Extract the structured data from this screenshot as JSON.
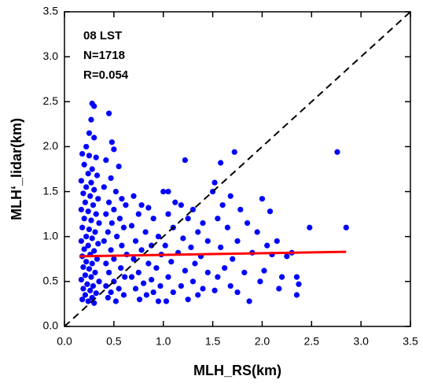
{
  "chart_data": {
    "type": "scatter",
    "xlabel": "MLH_RS(km)",
    "ylabel": "MLH‘_lidar(km)",
    "annotations": [
      "08 LST",
      "N=1718",
      "R=0.054"
    ],
    "xlim": [
      0,
      3.5
    ],
    "ylim": [
      0,
      3.5
    ],
    "xticks": [
      {
        "value": 0,
        "label": "0.0"
      },
      0.5,
      {
        "value": 1,
        "label": "1.0"
      },
      1.5,
      {
        "value": 2,
        "label": "2.0"
      },
      2.5,
      {
        "value": 3,
        "label": "3.0"
      },
      3.5
    ],
    "yticks": [
      {
        "value": 0,
        "label": "0.0"
      },
      0.5,
      {
        "value": 1,
        "label": "1.0"
      },
      1.5,
      {
        "value": 2,
        "label": "2.0"
      },
      2.5,
      {
        "value": 3,
        "label": "3.0"
      },
      3.5
    ],
    "identity_line": true,
    "fit_line": {
      "x": [
        0.15,
        2.85
      ],
      "y": [
        0.78,
        0.83
      ],
      "color": "#ff0000"
    },
    "series": [
      {
        "color": "#0000ff",
        "x": [
          0.28,
          0.3,
          0.27,
          0.25,
          0.3,
          0.22,
          0.18,
          0.25,
          0.32,
          0.2,
          0.28,
          0.24,
          0.33,
          0.17,
          0.27,
          0.22,
          0.3,
          0.19,
          0.26,
          0.34,
          0.21,
          0.29,
          0.17,
          0.24,
          0.32,
          0.2,
          0.27,
          0.35,
          0.18,
          0.25,
          0.31,
          0.22,
          0.28,
          0.17,
          0.34,
          0.24,
          0.2,
          0.3,
          0.26,
          0.18,
          0.33,
          0.22,
          0.28,
          0.19,
          0.25,
          0.31,
          0.21,
          0.27,
          0.17,
          0.35,
          0.23,
          0.29,
          0.19,
          0.26,
          0.32,
          0.21,
          0.28,
          0.18,
          0.24,
          0.3,
          0.45,
          0.48,
          0.5,
          0.42,
          0.55,
          0.47,
          0.4,
          0.52,
          0.58,
          0.45,
          0.62,
          0.5,
          0.42,
          0.56,
          0.48,
          0.6,
          0.44,
          0.53,
          0.4,
          0.58,
          0.47,
          0.63,
          0.5,
          0.42,
          0.57,
          0.45,
          0.61,
          0.5,
          0.42,
          0.55,
          0.47,
          0.6,
          0.44,
          0.52,
          0.7,
          0.78,
          0.85,
          0.75,
          0.9,
          0.68,
          0.82,
          0.95,
          0.72,
          0.88,
          0.78,
          0.98,
          0.7,
          0.85,
          0.93,
          0.75,
          0.68,
          0.88,
          0.8,
          0.97,
          0.72,
          0.9,
          0.83,
          0.76,
          0.95,
          1.0,
          1.05,
          1.22,
          1.12,
          1.18,
          1.3,
          1.05,
          1.25,
          1.4,
          1.1,
          1.35,
          1.2,
          1.45,
          1.02,
          1.28,
          1.15,
          1.38,
          1.08,
          1.32,
          1.22,
          1.45,
          1.05,
          1.3,
          1.18,
          1.4,
          1.1,
          1.35,
          1.25,
          1.03,
          1.58,
          1.52,
          1.5,
          1.72,
          1.68,
          1.6,
          1.78,
          1.55,
          1.85,
          1.65,
          1.95,
          1.75,
          1.58,
          1.9,
          1.7,
          1.62,
          1.82,
          1.55,
          1.98,
          1.68,
          1.52,
          1.75,
          1.87,
          2.0,
          2.08,
          2.05,
          2.15,
          2.1,
          2.25,
          2.2,
          2.3,
          2.02,
          2.17,
          2.35,
          2.37,
          2.35,
          2.48,
          2.76,
          2.85
        ],
        "values": [
          2.48,
          2.45,
          2.3,
          2.15,
          2.1,
          2.0,
          1.92,
          1.9,
          1.88,
          1.8,
          1.75,
          1.7,
          1.68,
          1.62,
          1.6,
          1.55,
          1.52,
          1.48,
          1.45,
          1.42,
          1.38,
          1.35,
          1.3,
          1.28,
          1.25,
          1.2,
          1.18,
          1.15,
          1.1,
          1.08,
          1.05,
          1.0,
          0.98,
          0.95,
          0.92,
          0.9,
          0.86,
          0.84,
          0.8,
          0.78,
          0.75,
          0.72,
          0.7,
          0.66,
          0.64,
          0.6,
          0.57,
          0.55,
          0.52,
          0.5,
          0.47,
          0.45,
          0.42,
          0.4,
          0.37,
          0.35,
          0.32,
          0.3,
          0.28,
          0.26,
          2.37,
          2.05,
          1.97,
          1.85,
          1.78,
          1.65,
          1.55,
          1.5,
          1.42,
          1.38,
          1.35,
          1.3,
          1.25,
          1.2,
          1.15,
          1.1,
          1.05,
          1.0,
          0.95,
          0.9,
          0.85,
          0.8,
          0.75,
          0.7,
          0.65,
          0.6,
          0.55,
          0.5,
          0.45,
          0.42,
          0.38,
          0.35,
          0.32,
          0.28,
          1.45,
          1.35,
          1.32,
          1.25,
          1.2,
          1.12,
          1.05,
          1.0,
          0.95,
          0.9,
          0.85,
          0.8,
          0.75,
          0.7,
          0.65,
          0.6,
          0.55,
          0.52,
          0.48,
          0.45,
          0.42,
          0.38,
          0.35,
          0.3,
          0.28,
          1.5,
          1.5,
          1.85,
          1.38,
          1.35,
          1.3,
          1.25,
          1.2,
          1.15,
          1.1,
          1.05,
          0.98,
          0.95,
          0.9,
          0.88,
          0.82,
          0.78,
          0.72,
          0.7,
          0.62,
          0.6,
          0.55,
          0.5,
          0.45,
          0.42,
          0.38,
          0.35,
          0.3,
          0.28,
          1.82,
          1.6,
          1.5,
          1.94,
          1.45,
          1.35,
          1.3,
          1.2,
          1.15,
          1.1,
          1.05,
          0.95,
          0.88,
          0.82,
          0.75,
          0.65,
          0.6,
          0.55,
          0.5,
          0.45,
          0.4,
          0.38,
          0.28,
          1.42,
          1.28,
          0.9,
          0.95,
          0.8,
          0.78,
          0.55,
          0.82,
          0.62,
          0.42,
          0.55,
          0.47,
          0.35,
          1.1,
          1.94,
          1.1
        ]
      }
    ]
  }
}
